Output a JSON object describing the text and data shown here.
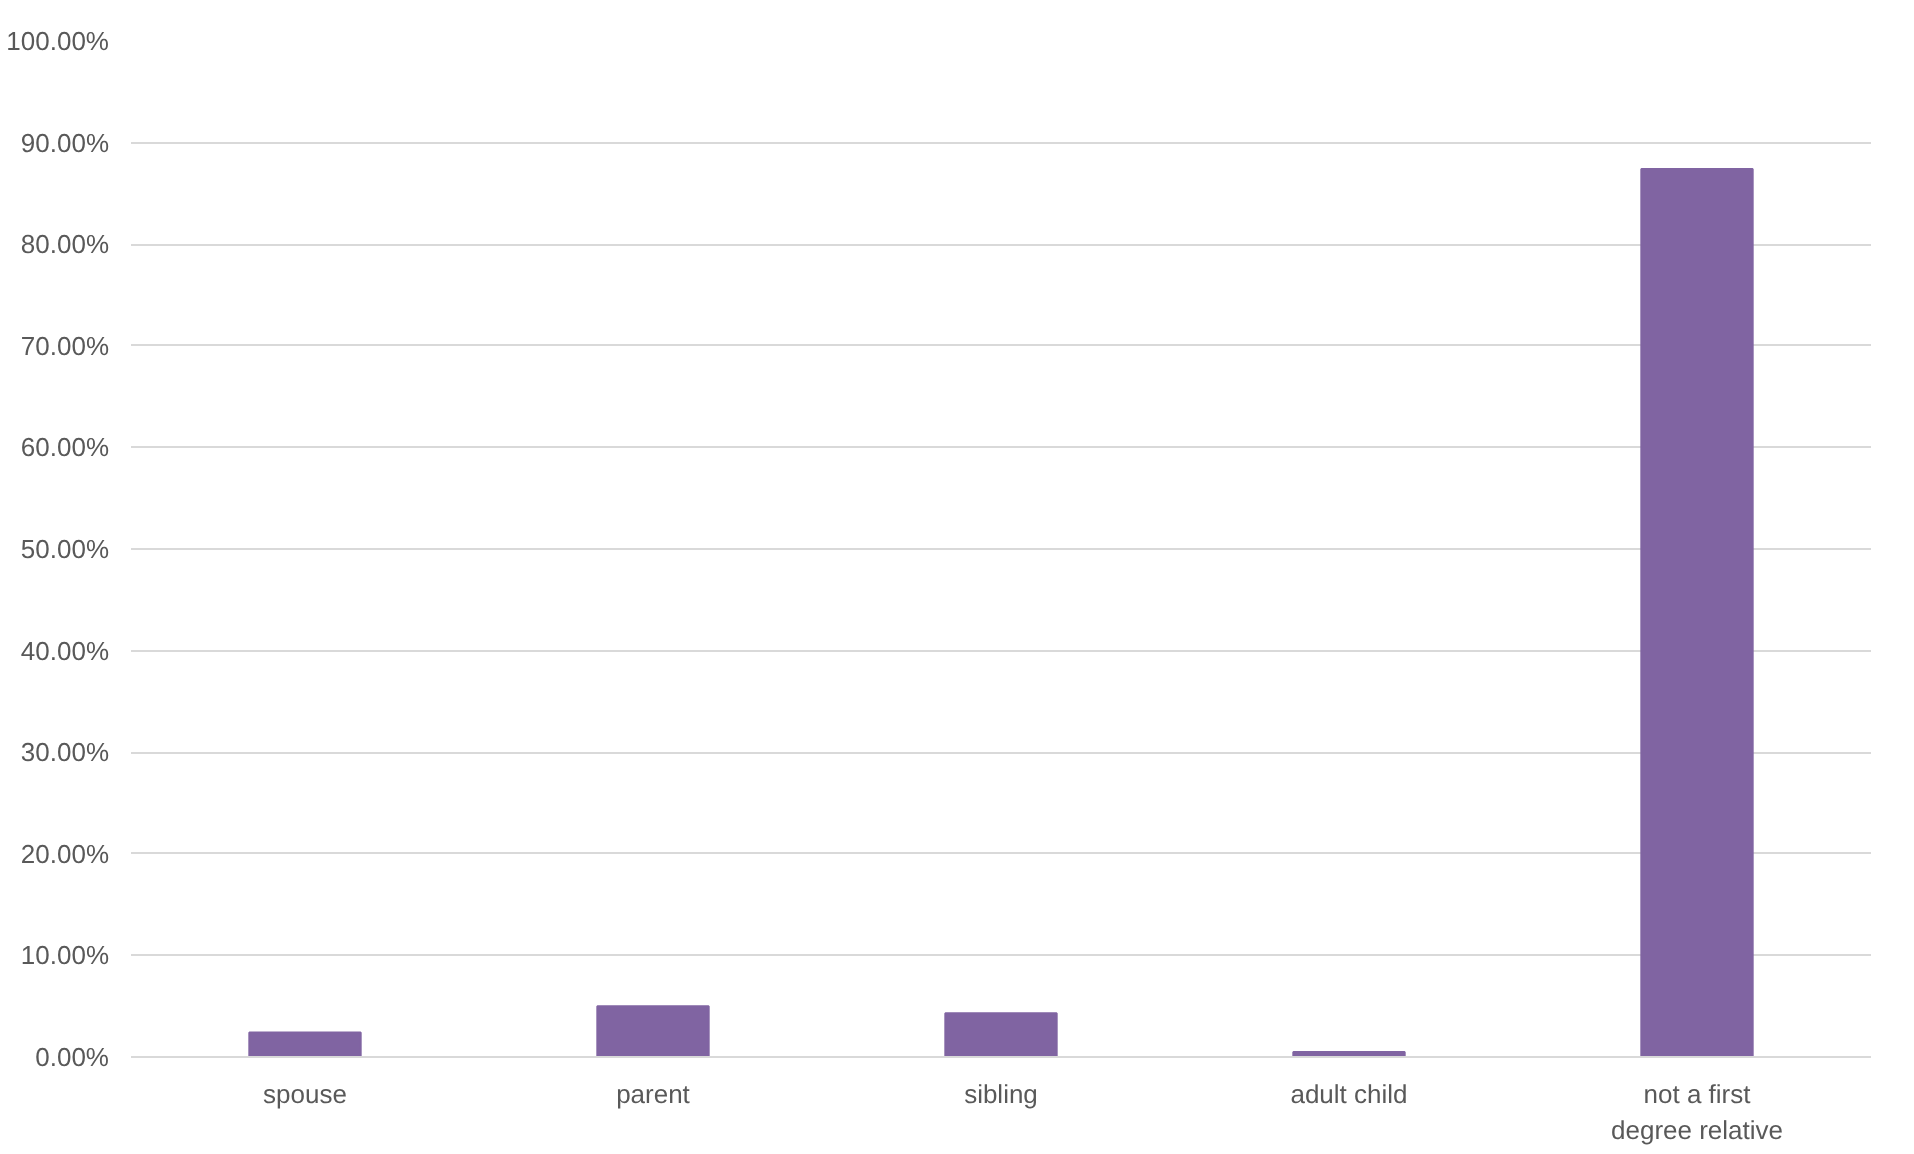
{
  "chart_data": {
    "type": "bar",
    "categories": [
      "spouse",
      "parent",
      "sibling",
      "adult child",
      "not a first degree relative"
    ],
    "values": [
      2.4,
      5.0,
      4.3,
      0.5,
      87.4
    ],
    "color": "#8064a2",
    "ylim": [
      0,
      100
    ],
    "yticks": [
      {
        "value": 0,
        "label": "0.00%"
      },
      {
        "value": 10,
        "label": "10.00%"
      },
      {
        "value": 20,
        "label": "20.00%"
      },
      {
        "value": 30,
        "label": "30.00%"
      },
      {
        "value": 40,
        "label": "40.00%"
      },
      {
        "value": 50,
        "label": "50.00%"
      },
      {
        "value": 60,
        "label": "60.00%"
      },
      {
        "value": 70,
        "label": "70.00%"
      },
      {
        "value": 80,
        "label": "80.00%"
      },
      {
        "value": 90,
        "label": "90.00%"
      },
      {
        "value": 100,
        "label": "100.00%"
      }
    ],
    "grid": "y"
  }
}
